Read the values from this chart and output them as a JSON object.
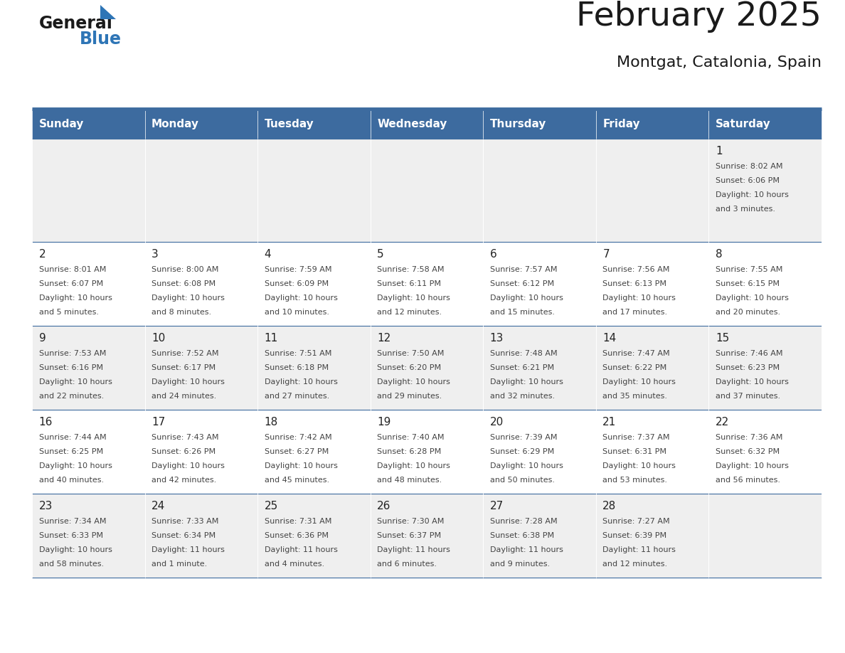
{
  "title": "February 2025",
  "subtitle": "Montgat, Catalonia, Spain",
  "header_bg": "#3D6B9F",
  "header_text_color": "#FFFFFF",
  "header_font_size": 11,
  "days_of_week": [
    "Sunday",
    "Monday",
    "Tuesday",
    "Wednesday",
    "Thursday",
    "Friday",
    "Saturday"
  ],
  "title_font_size": 34,
  "subtitle_font_size": 16,
  "cell_text_color": "#444444",
  "day_num_color": "#222222",
  "line_color": "#3D6B9F",
  "row0_bg": "#EFEFEF",
  "row1_bg": "#FFFFFF",
  "row2_bg": "#EFEFEF",
  "row3_bg": "#FFFFFF",
  "row4_bg": "#EFEFEF",
  "calendar": [
    [
      null,
      null,
      null,
      null,
      null,
      null,
      {
        "day": "1",
        "sunrise": "8:02 AM",
        "sunset": "6:06 PM",
        "daylight": "10 hours",
        "daylight2": "and 3 minutes."
      }
    ],
    [
      {
        "day": "2",
        "sunrise": "8:01 AM",
        "sunset": "6:07 PM",
        "daylight": "10 hours",
        "daylight2": "and 5 minutes."
      },
      {
        "day": "3",
        "sunrise": "8:00 AM",
        "sunset": "6:08 PM",
        "daylight": "10 hours",
        "daylight2": "and 8 minutes."
      },
      {
        "day": "4",
        "sunrise": "7:59 AM",
        "sunset": "6:09 PM",
        "daylight": "10 hours",
        "daylight2": "and 10 minutes."
      },
      {
        "day": "5",
        "sunrise": "7:58 AM",
        "sunset": "6:11 PM",
        "daylight": "10 hours",
        "daylight2": "and 12 minutes."
      },
      {
        "day": "6",
        "sunrise": "7:57 AM",
        "sunset": "6:12 PM",
        "daylight": "10 hours",
        "daylight2": "and 15 minutes."
      },
      {
        "day": "7",
        "sunrise": "7:56 AM",
        "sunset": "6:13 PM",
        "daylight": "10 hours",
        "daylight2": "and 17 minutes."
      },
      {
        "day": "8",
        "sunrise": "7:55 AM",
        "sunset": "6:15 PM",
        "daylight": "10 hours",
        "daylight2": "and 20 minutes."
      }
    ],
    [
      {
        "day": "9",
        "sunrise": "7:53 AM",
        "sunset": "6:16 PM",
        "daylight": "10 hours",
        "daylight2": "and 22 minutes."
      },
      {
        "day": "10",
        "sunrise": "7:52 AM",
        "sunset": "6:17 PM",
        "daylight": "10 hours",
        "daylight2": "and 24 minutes."
      },
      {
        "day": "11",
        "sunrise": "7:51 AM",
        "sunset": "6:18 PM",
        "daylight": "10 hours",
        "daylight2": "and 27 minutes."
      },
      {
        "day": "12",
        "sunrise": "7:50 AM",
        "sunset": "6:20 PM",
        "daylight": "10 hours",
        "daylight2": "and 29 minutes."
      },
      {
        "day": "13",
        "sunrise": "7:48 AM",
        "sunset": "6:21 PM",
        "daylight": "10 hours",
        "daylight2": "and 32 minutes."
      },
      {
        "day": "14",
        "sunrise": "7:47 AM",
        "sunset": "6:22 PM",
        "daylight": "10 hours",
        "daylight2": "and 35 minutes."
      },
      {
        "day": "15",
        "sunrise": "7:46 AM",
        "sunset": "6:23 PM",
        "daylight": "10 hours",
        "daylight2": "and 37 minutes."
      }
    ],
    [
      {
        "day": "16",
        "sunrise": "7:44 AM",
        "sunset": "6:25 PM",
        "daylight": "10 hours",
        "daylight2": "and 40 minutes."
      },
      {
        "day": "17",
        "sunrise": "7:43 AM",
        "sunset": "6:26 PM",
        "daylight": "10 hours",
        "daylight2": "and 42 minutes."
      },
      {
        "day": "18",
        "sunrise": "7:42 AM",
        "sunset": "6:27 PM",
        "daylight": "10 hours",
        "daylight2": "and 45 minutes."
      },
      {
        "day": "19",
        "sunrise": "7:40 AM",
        "sunset": "6:28 PM",
        "daylight": "10 hours",
        "daylight2": "and 48 minutes."
      },
      {
        "day": "20",
        "sunrise": "7:39 AM",
        "sunset": "6:29 PM",
        "daylight": "10 hours",
        "daylight2": "and 50 minutes."
      },
      {
        "day": "21",
        "sunrise": "7:37 AM",
        "sunset": "6:31 PM",
        "daylight": "10 hours",
        "daylight2": "and 53 minutes."
      },
      {
        "day": "22",
        "sunrise": "7:36 AM",
        "sunset": "6:32 PM",
        "daylight": "10 hours",
        "daylight2": "and 56 minutes."
      }
    ],
    [
      {
        "day": "23",
        "sunrise": "7:34 AM",
        "sunset": "6:33 PM",
        "daylight": "10 hours",
        "daylight2": "and 58 minutes."
      },
      {
        "day": "24",
        "sunrise": "7:33 AM",
        "sunset": "6:34 PM",
        "daylight": "11 hours",
        "daylight2": "and 1 minute."
      },
      {
        "day": "25",
        "sunrise": "7:31 AM",
        "sunset": "6:36 PM",
        "daylight": "11 hours",
        "daylight2": "and 4 minutes."
      },
      {
        "day": "26",
        "sunrise": "7:30 AM",
        "sunset": "6:37 PM",
        "daylight": "11 hours",
        "daylight2": "and 6 minutes."
      },
      {
        "day": "27",
        "sunrise": "7:28 AM",
        "sunset": "6:38 PM",
        "daylight": "11 hours",
        "daylight2": "and 9 minutes."
      },
      {
        "day": "28",
        "sunrise": "7:27 AM",
        "sunset": "6:39 PM",
        "daylight": "11 hours",
        "daylight2": "and 12 minutes."
      },
      null
    ]
  ]
}
